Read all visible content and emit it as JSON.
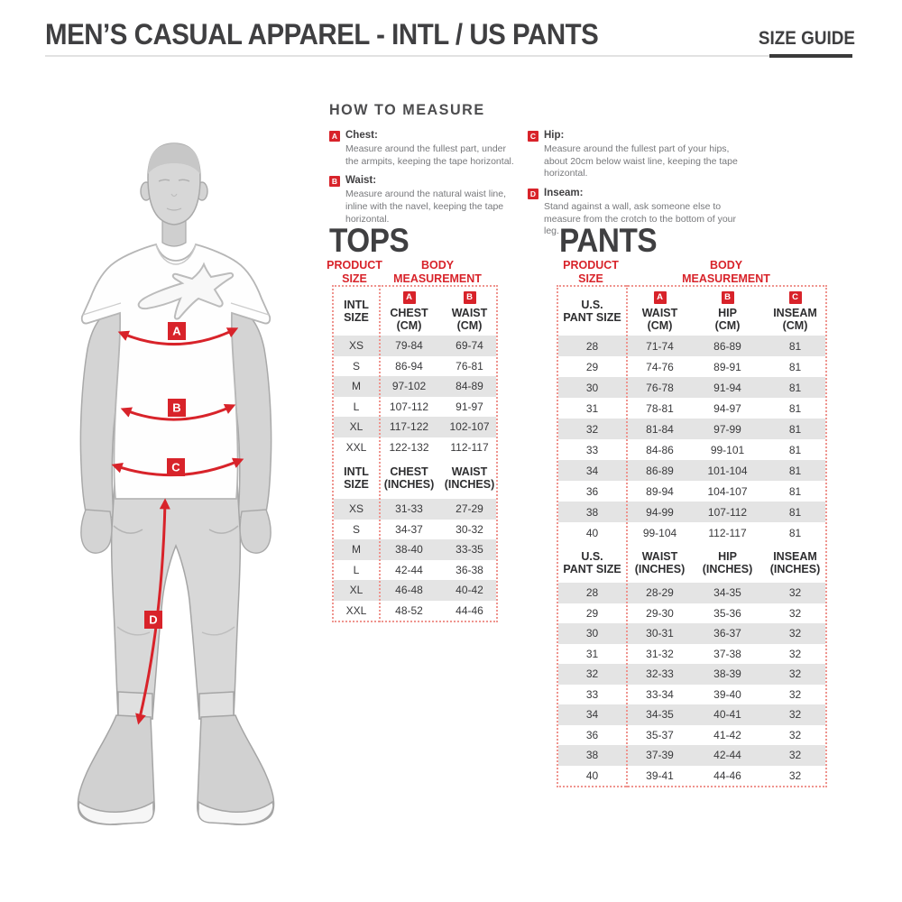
{
  "colors": {
    "accent_red": "#d8232a",
    "row_stripe": "#e4e4e4",
    "title_gray": "#3f3f41"
  },
  "header": {
    "title": "MEN’S CASUAL APPAREL - INTL / US PANTS",
    "size_guide_label": "SIZE GUIDE"
  },
  "how_to_measure": {
    "title": "HOW TO MEASURE",
    "items": [
      {
        "badge": "A",
        "label": "Chest:",
        "description": "Measure around the fullest part, under the armpits, keeping the tape horizontal."
      },
      {
        "badge": "B",
        "label": "Waist:",
        "description": "Measure around the natural waist line, inline with the navel, keeping the tape horizontal."
      },
      {
        "badge": "C",
        "label": "Hip:",
        "description": "Measure around the fullest part of your hips, about 20cm below waist line, keeping the tape horizontal."
      },
      {
        "badge": "D",
        "label": "Inseam:",
        "description": "Stand against a wall, ask someone else to measure from the crotch to the bottom of your leg."
      }
    ]
  },
  "figure": {
    "markers": [
      "A",
      "B",
      "C",
      "D"
    ]
  },
  "tops": {
    "title": "TOPS",
    "product_size_label": "PRODUCT SIZE",
    "body_measurement_label": "BODY MEASUREMENT",
    "cm": {
      "size_header": [
        "INTL",
        "SIZE"
      ],
      "columns": [
        {
          "badge": "A",
          "title": "CHEST",
          "unit": "(CM)"
        },
        {
          "badge": "B",
          "title": "WAIST",
          "unit": "(CM)"
        }
      ],
      "rows": [
        {
          "size": "XS",
          "values": [
            "79-84",
            "69-74"
          ]
        },
        {
          "size": "S",
          "values": [
            "86-94",
            "76-81"
          ]
        },
        {
          "size": "M",
          "values": [
            "97-102",
            "84-89"
          ]
        },
        {
          "size": "L",
          "values": [
            "107-112",
            "91-97"
          ]
        },
        {
          "size": "XL",
          "values": [
            "117-122",
            "102-107"
          ]
        },
        {
          "size": "XXL",
          "values": [
            "122-132",
            "112-117"
          ]
        }
      ]
    },
    "inches": {
      "size_header": [
        "INTL",
        "SIZE"
      ],
      "columns": [
        {
          "badge": "",
          "title": "CHEST",
          "unit": "(INCHES)"
        },
        {
          "badge": "",
          "title": "WAIST",
          "unit": "(INCHES)"
        }
      ],
      "rows": [
        {
          "size": "XS",
          "values": [
            "31-33",
            "27-29"
          ]
        },
        {
          "size": "S",
          "values": [
            "34-37",
            "30-32"
          ]
        },
        {
          "size": "M",
          "values": [
            "38-40",
            "33-35"
          ]
        },
        {
          "size": "L",
          "values": [
            "42-44",
            "36-38"
          ]
        },
        {
          "size": "XL",
          "values": [
            "46-48",
            "40-42"
          ]
        },
        {
          "size": "XXL",
          "values": [
            "48-52",
            "44-46"
          ]
        }
      ]
    }
  },
  "pants": {
    "title": "PANTS",
    "product_size_label": "PRODUCT SIZE",
    "body_measurement_label": "BODY MEASUREMENT",
    "cm": {
      "size_header": [
        "U.S.",
        "PANT SIZE"
      ],
      "columns": [
        {
          "badge": "A",
          "title": "WAIST",
          "unit": "(CM)"
        },
        {
          "badge": "B",
          "title": "HIP",
          "unit": "(CM)"
        },
        {
          "badge": "C",
          "title": "INSEAM",
          "unit": "(CM)"
        }
      ],
      "rows": [
        {
          "size": "28",
          "values": [
            "71-74",
            "86-89",
            "81"
          ]
        },
        {
          "size": "29",
          "values": [
            "74-76",
            "89-91",
            "81"
          ]
        },
        {
          "size": "30",
          "values": [
            "76-78",
            "91-94",
            "81"
          ]
        },
        {
          "size": "31",
          "values": [
            "78-81",
            "94-97",
            "81"
          ]
        },
        {
          "size": "32",
          "values": [
            "81-84",
            "97-99",
            "81"
          ]
        },
        {
          "size": "33",
          "values": [
            "84-86",
            "99-101",
            "81"
          ]
        },
        {
          "size": "34",
          "values": [
            "86-89",
            "101-104",
            "81"
          ]
        },
        {
          "size": "36",
          "values": [
            "89-94",
            "104-107",
            "81"
          ]
        },
        {
          "size": "38",
          "values": [
            "94-99",
            "107-112",
            "81"
          ]
        },
        {
          "size": "40",
          "values": [
            "99-104",
            "112-117",
            "81"
          ]
        }
      ]
    },
    "inches": {
      "size_header": [
        "U.S.",
        "PANT SIZE"
      ],
      "columns": [
        {
          "badge": "",
          "title": "WAIST",
          "unit": "(INCHES)"
        },
        {
          "badge": "",
          "title": "HIP",
          "unit": "(INCHES)"
        },
        {
          "badge": "",
          "title": "INSEAM",
          "unit": "(INCHES)"
        }
      ],
      "rows": [
        {
          "size": "28",
          "values": [
            "28-29",
            "34-35",
            "32"
          ]
        },
        {
          "size": "29",
          "values": [
            "29-30",
            "35-36",
            "32"
          ]
        },
        {
          "size": "30",
          "values": [
            "30-31",
            "36-37",
            "32"
          ]
        },
        {
          "size": "31",
          "values": [
            "31-32",
            "37-38",
            "32"
          ]
        },
        {
          "size": "32",
          "values": [
            "32-33",
            "38-39",
            "32"
          ]
        },
        {
          "size": "33",
          "values": [
            "33-34",
            "39-40",
            "32"
          ]
        },
        {
          "size": "34",
          "values": [
            "34-35",
            "40-41",
            "32"
          ]
        },
        {
          "size": "36",
          "values": [
            "35-37",
            "41-42",
            "32"
          ]
        },
        {
          "size": "38",
          "values": [
            "37-39",
            "42-44",
            "32"
          ]
        },
        {
          "size": "40",
          "values": [
            "39-41",
            "44-46",
            "32"
          ]
        }
      ]
    }
  }
}
